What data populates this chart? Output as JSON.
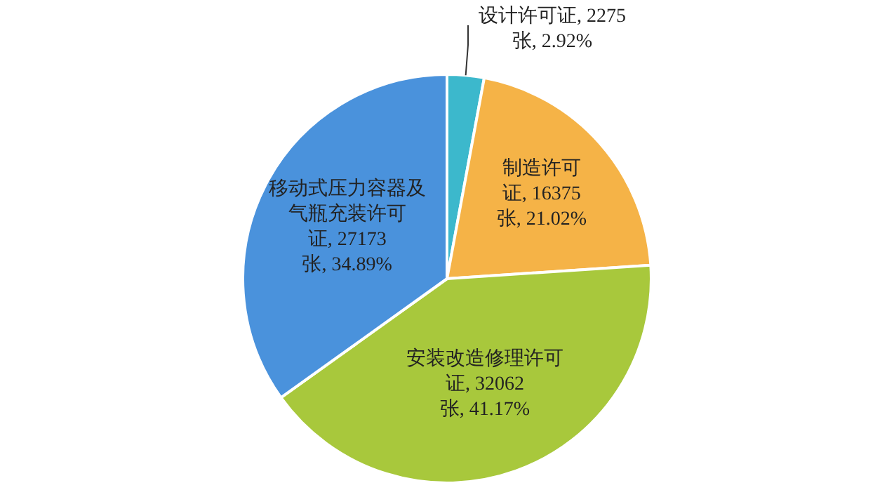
{
  "chart_data": {
    "type": "pie",
    "categories": [
      "设计许可证",
      "制造许可证",
      "安装改造修理许可证",
      "移动式压力容器及气瓶充装许可证"
    ],
    "values": [
      2275,
      16375,
      32062,
      27173
    ],
    "value_labels": [
      "2275张, 2.92%",
      "16375张, 21.02%",
      "32062张, 41.17%",
      "27173张, 34.89%"
    ],
    "colors": [
      "#3cb8cc",
      "#f5b347",
      "#a8c83c",
      "#4a92dc"
    ],
    "legend": false
  }
}
